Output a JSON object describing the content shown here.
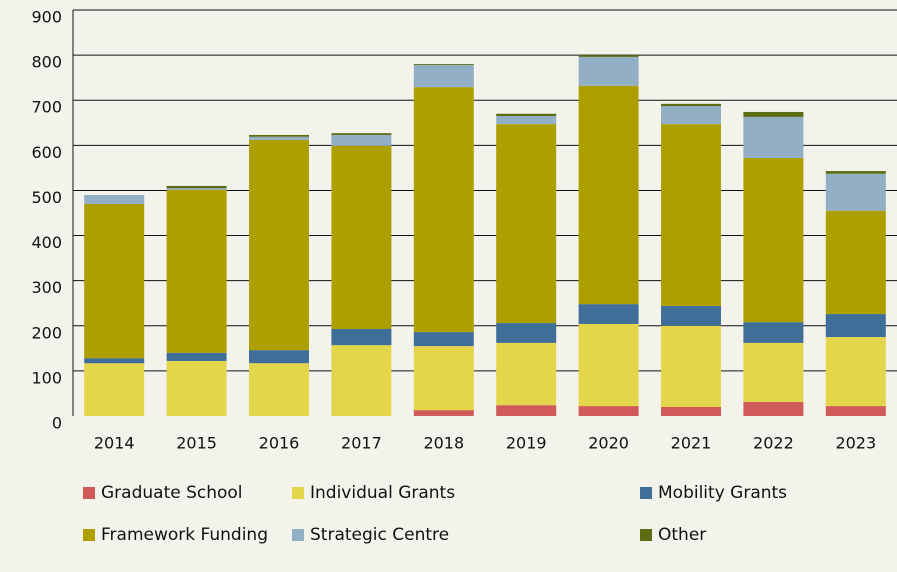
{
  "chart_data": {
    "type": "stacked_bar",
    "categories": [
      "2014",
      "2015",
      "2016",
      "2017",
      "2018",
      "2019",
      "2020",
      "2021",
      "2022",
      "2023"
    ],
    "series": [
      {
        "name": "Graduate School",
        "color": "#d05a5a",
        "values": [
          0,
          0,
          0,
          0,
          13,
          24,
          22,
          20,
          31,
          22
        ]
      },
      {
        "name": "Individual Grants",
        "color": "#e4d64a",
        "values": [
          117,
          122,
          117,
          157,
          142,
          138,
          182,
          180,
          131,
          153
        ]
      },
      {
        "name": "Mobility Grants",
        "color": "#3f6f99",
        "values": [
          11,
          18,
          29,
          36,
          31,
          44,
          44,
          44,
          46,
          51
        ]
      },
      {
        "name": "Framework Funding",
        "color": "#ad9f00",
        "values": [
          342,
          361,
          466,
          406,
          543,
          441,
          484,
          403,
          364,
          229
        ]
      },
      {
        "name": "Strategic Centre",
        "color": "#93afc6",
        "values": [
          20,
          4,
          7,
          24,
          49,
          18,
          64,
          40,
          91,
          82
        ]
      },
      {
        "name": "Other",
        "color": "#5d6d12",
        "values": [
          0,
          5,
          4,
          4,
          2,
          5,
          4,
          5,
          11,
          6
        ]
      }
    ],
    "ylim": [
      0,
      900
    ],
    "yticks": [
      0,
      100,
      200,
      300,
      400,
      500,
      600,
      700,
      800,
      900
    ],
    "grid": true
  }
}
